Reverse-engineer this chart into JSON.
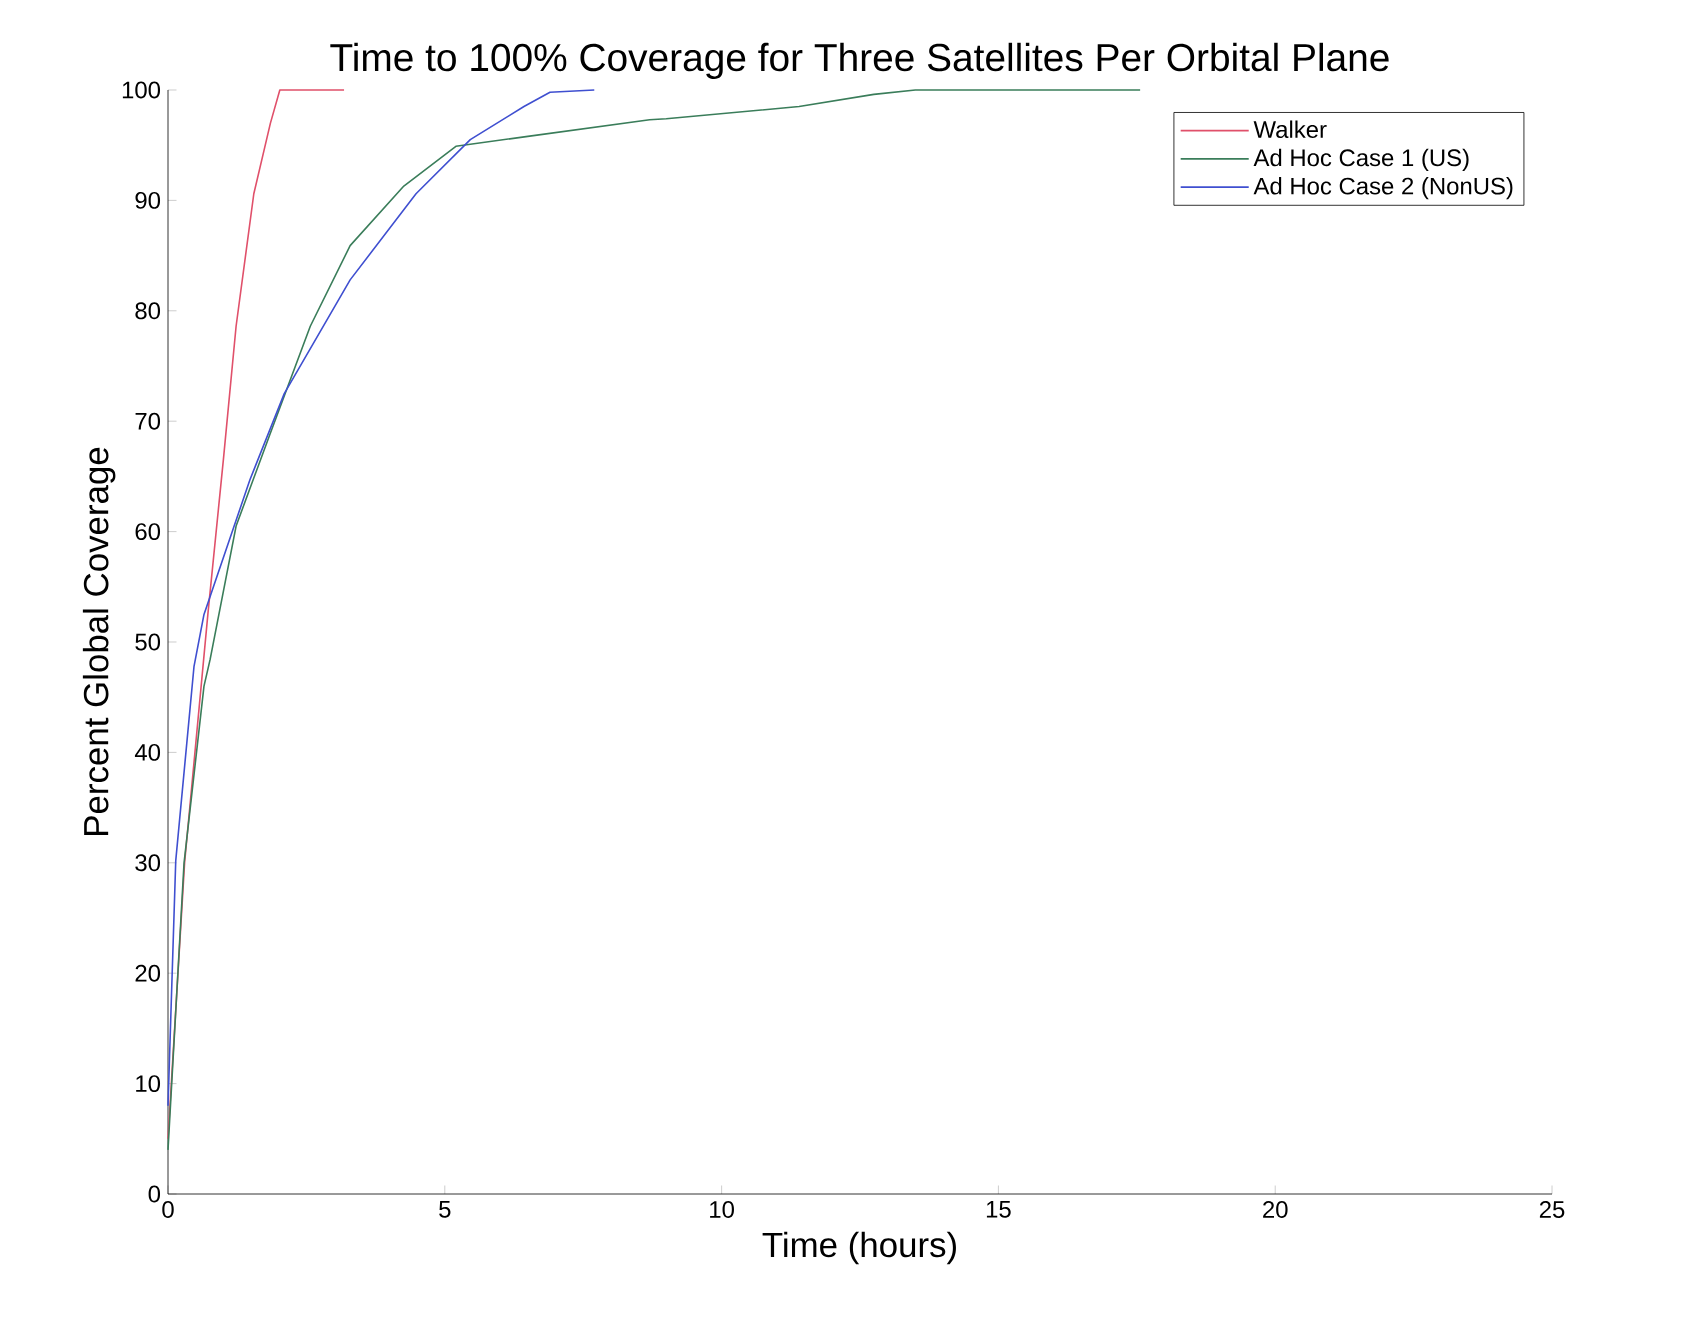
{
  "chart_data": {
    "type": "line",
    "title": "Time to 100% Coverage for Three Satellites Per Orbital Plane",
    "xlabel": "Time (hours)",
    "ylabel": "Percent Global Coverage",
    "xlim": [
      0,
      25
    ],
    "ylim": [
      0,
      100
    ],
    "xticks": [
      0,
      5,
      10,
      15,
      20,
      25
    ],
    "yticks": [
      0,
      10,
      20,
      30,
      40,
      50,
      60,
      70,
      80,
      90,
      100
    ],
    "grid": false,
    "legend": "top right",
    "marker": "none",
    "line_style": "solid",
    "series": [
      {
        "name": "Walker",
        "color": "#e0506a",
        "x": [
          0,
          0.3,
          0.72,
          1.0,
          1.23,
          1.55,
          1.85,
          2.02,
          2.2,
          3.18
        ],
        "values": [
          5,
          30,
          52.5,
          66.5,
          78.6,
          90.6,
          97,
          100,
          100,
          100
        ]
      },
      {
        "name": "Ad Hoc Case 1 (US)",
        "color": "#3a7d5a",
        "x": [
          0,
          0.29,
          0.65,
          0.76,
          1.23,
          1.84,
          2.57,
          3.29,
          4.26,
          5.2,
          6.5,
          8.7,
          9.0,
          11.4,
          12.75,
          13.5,
          17.56
        ],
        "values": [
          4,
          30,
          46,
          48.4,
          60.5,
          68.8,
          78.6,
          85.9,
          91.3,
          94.9,
          95.8,
          97.3,
          97.4,
          98.5,
          99.6,
          100,
          100
        ]
      },
      {
        "name": "Ad Hoc Case 2 (NonUS)",
        "color": "#3f4fd0",
        "x": [
          0,
          0.14,
          0.47,
          0.65,
          1.48,
          2.1,
          3.29,
          4.48,
          5.46,
          6.43,
          6.9,
          7.7
        ],
        "values": [
          8,
          30.2,
          47.8,
          52.5,
          64.7,
          72.5,
          82.8,
          90.6,
          95.5,
          98.5,
          99.8,
          100
        ]
      }
    ]
  }
}
